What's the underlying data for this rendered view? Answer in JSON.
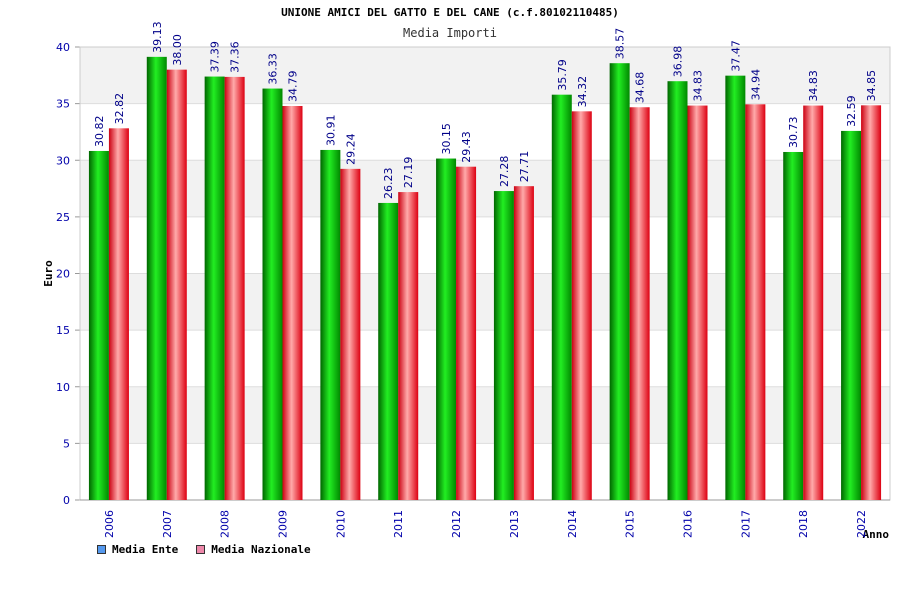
{
  "title": "UNIONE AMICI DEL GATTO E DEL CANE (c.f.80102110485)",
  "subtitle": "Media Importi",
  "legend": {
    "ente_label": "Media Ente",
    "nazionale_label": "Media Nazionale",
    "ente_color": "#5599ee",
    "nazionale_color": "#ee88aa"
  },
  "chart_data": {
    "type": "bar",
    "xlabel": "Anno",
    "ylabel": "Euro",
    "ylim": [
      0,
      40
    ],
    "yticks": [
      0,
      5,
      10,
      15,
      20,
      25,
      30,
      35,
      40
    ],
    "grid": true,
    "legend_position": "bottom-left",
    "categories": [
      "2006",
      "2007",
      "2008",
      "2009",
      "2010",
      "2011",
      "2012",
      "2013",
      "2014",
      "2015",
      "2016",
      "2017",
      "2018",
      "2022"
    ],
    "series": [
      {
        "name": "Media Ente",
        "color": "#00bb00",
        "values": [
          30.82,
          39.13,
          37.39,
          36.33,
          30.91,
          26.23,
          30.15,
          27.28,
          35.79,
          38.57,
          36.98,
          37.47,
          30.73,
          32.59
        ]
      },
      {
        "name": "Media Nazionale",
        "color": "#ee2233",
        "values": [
          32.82,
          38.0,
          37.36,
          34.79,
          29.24,
          27.19,
          29.43,
          27.71,
          34.32,
          34.68,
          34.83,
          34.94,
          34.83,
          34.85
        ]
      }
    ]
  }
}
